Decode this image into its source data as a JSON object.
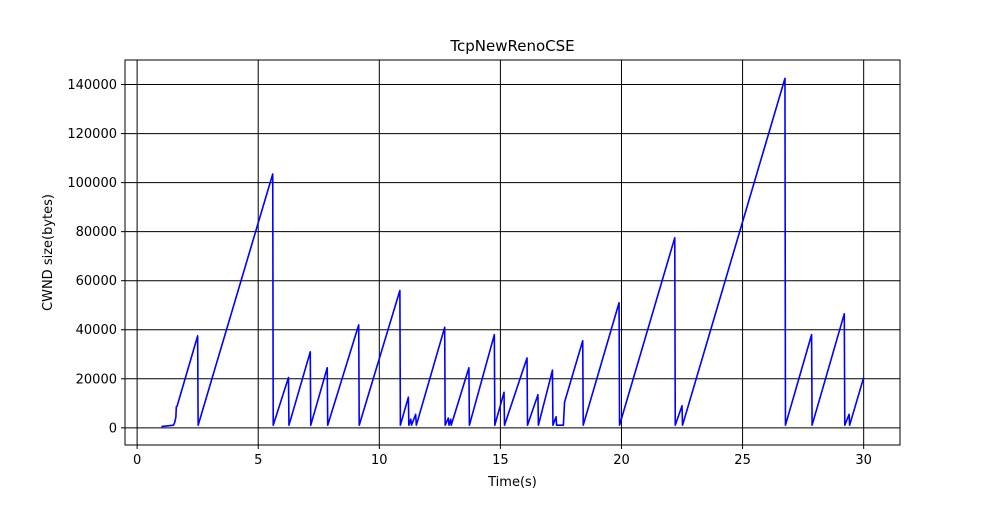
{
  "chart_data": {
    "type": "line",
    "title": "TcpNewRenoCSE",
    "xlabel": "Time(s)",
    "ylabel": "CWND size(bytes)",
    "xlim": [
      -0.5,
      31.5
    ],
    "ylim": [
      -7000,
      150000
    ],
    "x_ticks": [
      0,
      5,
      10,
      15,
      20,
      25,
      30
    ],
    "y_ticks": [
      0,
      20000,
      40000,
      60000,
      80000,
      100000,
      120000,
      140000
    ],
    "grid": true,
    "line_color": "#0000ff",
    "series": [
      {
        "points": [
          [
            1.0,
            536
          ],
          [
            1.5,
            1072
          ],
          [
            1.55,
            2144
          ],
          [
            1.6,
            4288
          ],
          [
            1.62,
            8576
          ],
          [
            1.65,
            8800
          ],
          [
            2.5,
            37500
          ],
          [
            2.52,
            1072
          ],
          [
            5.6,
            103500
          ],
          [
            5.62,
            1072
          ],
          [
            6.25,
            20500
          ],
          [
            6.27,
            1072
          ],
          [
            7.15,
            31000
          ],
          [
            7.17,
            1072
          ],
          [
            7.85,
            24500
          ],
          [
            7.87,
            1072
          ],
          [
            9.15,
            42000
          ],
          [
            9.17,
            1072
          ],
          [
            10.85,
            56000
          ],
          [
            10.87,
            1072
          ],
          [
            11.2,
            12500
          ],
          [
            11.22,
            1072
          ],
          [
            11.3,
            3500
          ],
          [
            11.33,
            1072
          ],
          [
            11.5,
            5500
          ],
          [
            11.53,
            1072
          ],
          [
            12.7,
            41000
          ],
          [
            12.72,
            1072
          ],
          [
            12.85,
            4000
          ],
          [
            12.88,
            1072
          ],
          [
            12.95,
            3500
          ],
          [
            12.97,
            1072
          ],
          [
            13.7,
            24500
          ],
          [
            13.72,
            1072
          ],
          [
            14.75,
            38000
          ],
          [
            14.77,
            1072
          ],
          [
            15.15,
            14500
          ],
          [
            15.17,
            1072
          ],
          [
            16.1,
            28500
          ],
          [
            16.12,
            1072
          ],
          [
            16.55,
            13500
          ],
          [
            16.57,
            1072
          ],
          [
            17.15,
            23500
          ],
          [
            17.17,
            1072
          ],
          [
            17.3,
            4500
          ],
          [
            17.32,
            1072
          ],
          [
            17.6,
            1072
          ],
          [
            17.65,
            10500
          ],
          [
            18.4,
            35500
          ],
          [
            18.42,
            1072
          ],
          [
            19.9,
            51000
          ],
          [
            19.92,
            1072
          ],
          [
            22.2,
            77500
          ],
          [
            22.22,
            1072
          ],
          [
            22.5,
            9000
          ],
          [
            22.52,
            1072
          ],
          [
            26.75,
            142500
          ],
          [
            26.77,
            1072
          ],
          [
            27.85,
            38000
          ],
          [
            27.87,
            1072
          ],
          [
            29.2,
            46500
          ],
          [
            29.22,
            1072
          ],
          [
            29.4,
            5500
          ],
          [
            29.42,
            1072
          ],
          [
            30.0,
            20500
          ]
        ]
      }
    ]
  }
}
